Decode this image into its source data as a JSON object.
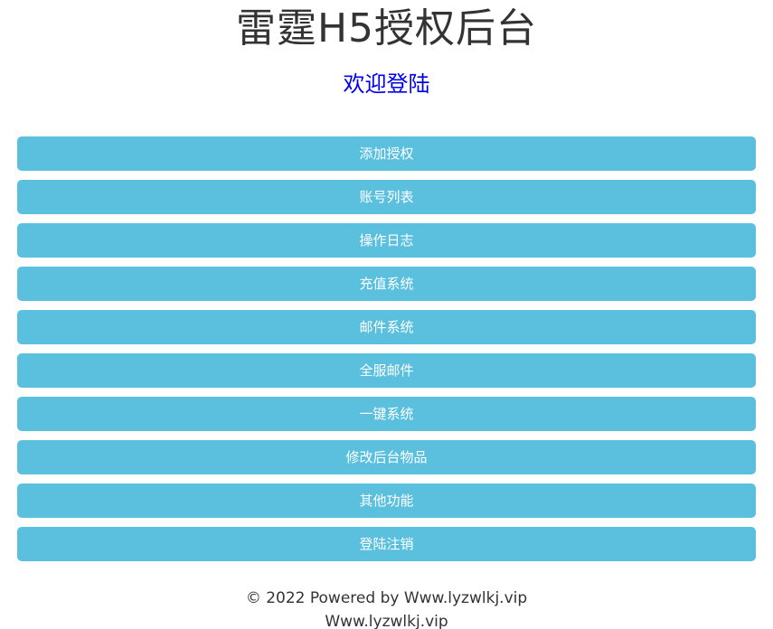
{
  "header": {
    "title": "雷霆H5授权后台",
    "welcome_link": "欢迎登陆"
  },
  "menu": {
    "buttons": [
      {
        "label": "添加授权"
      },
      {
        "label": "账号列表"
      },
      {
        "label": "操作日志"
      },
      {
        "label": "充值系统"
      },
      {
        "label": "邮件系统"
      },
      {
        "label": "全服邮件"
      },
      {
        "label": "一键系统"
      },
      {
        "label": "修改后台物品"
      },
      {
        "label": "其他功能"
      },
      {
        "label": "登陆注销"
      }
    ]
  },
  "footer": {
    "copyright": "© 2022 Powered by Www.lyzwlkj.vip",
    "site": "Www.lyzwlkj.vip"
  },
  "colors": {
    "page_bg": "#ffffff",
    "title_color": "#333333",
    "link_color": "#0000ee",
    "button_bg": "#5bc0de",
    "button_text": "#ffffff",
    "footer_color": "#333333"
  }
}
